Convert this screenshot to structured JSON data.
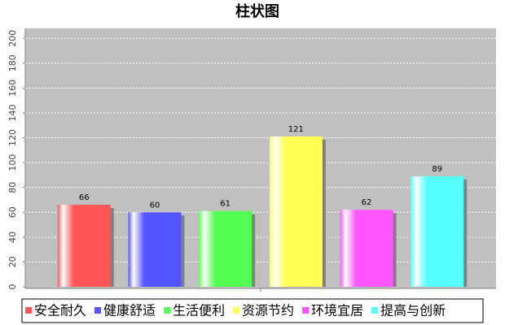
{
  "chart_data": {
    "type": "bar",
    "title": "柱状图",
    "categories": [
      null
    ],
    "series": [
      {
        "name": "安全耐久",
        "color": "#ff5555",
        "values": [
          66
        ]
      },
      {
        "name": "健康舒适",
        "color": "#5555ff",
        "values": [
          60
        ]
      },
      {
        "name": "生活便利",
        "color": "#55ff55",
        "values": [
          61
        ]
      },
      {
        "name": "资源节约",
        "color": "#ffff55",
        "values": [
          121
        ]
      },
      {
        "name": "环境宜居",
        "color": "#ff55ff",
        "values": [
          62
        ]
      },
      {
        "name": "提高与创新",
        "color": "#55ffff",
        "values": [
          89
        ]
      }
    ],
    "ylim": [
      0,
      208
    ],
    "yticks": [
      0,
      20,
      40,
      60,
      80,
      100,
      120,
      140,
      160,
      180,
      200
    ],
    "grid": true,
    "legend": "bottom"
  }
}
